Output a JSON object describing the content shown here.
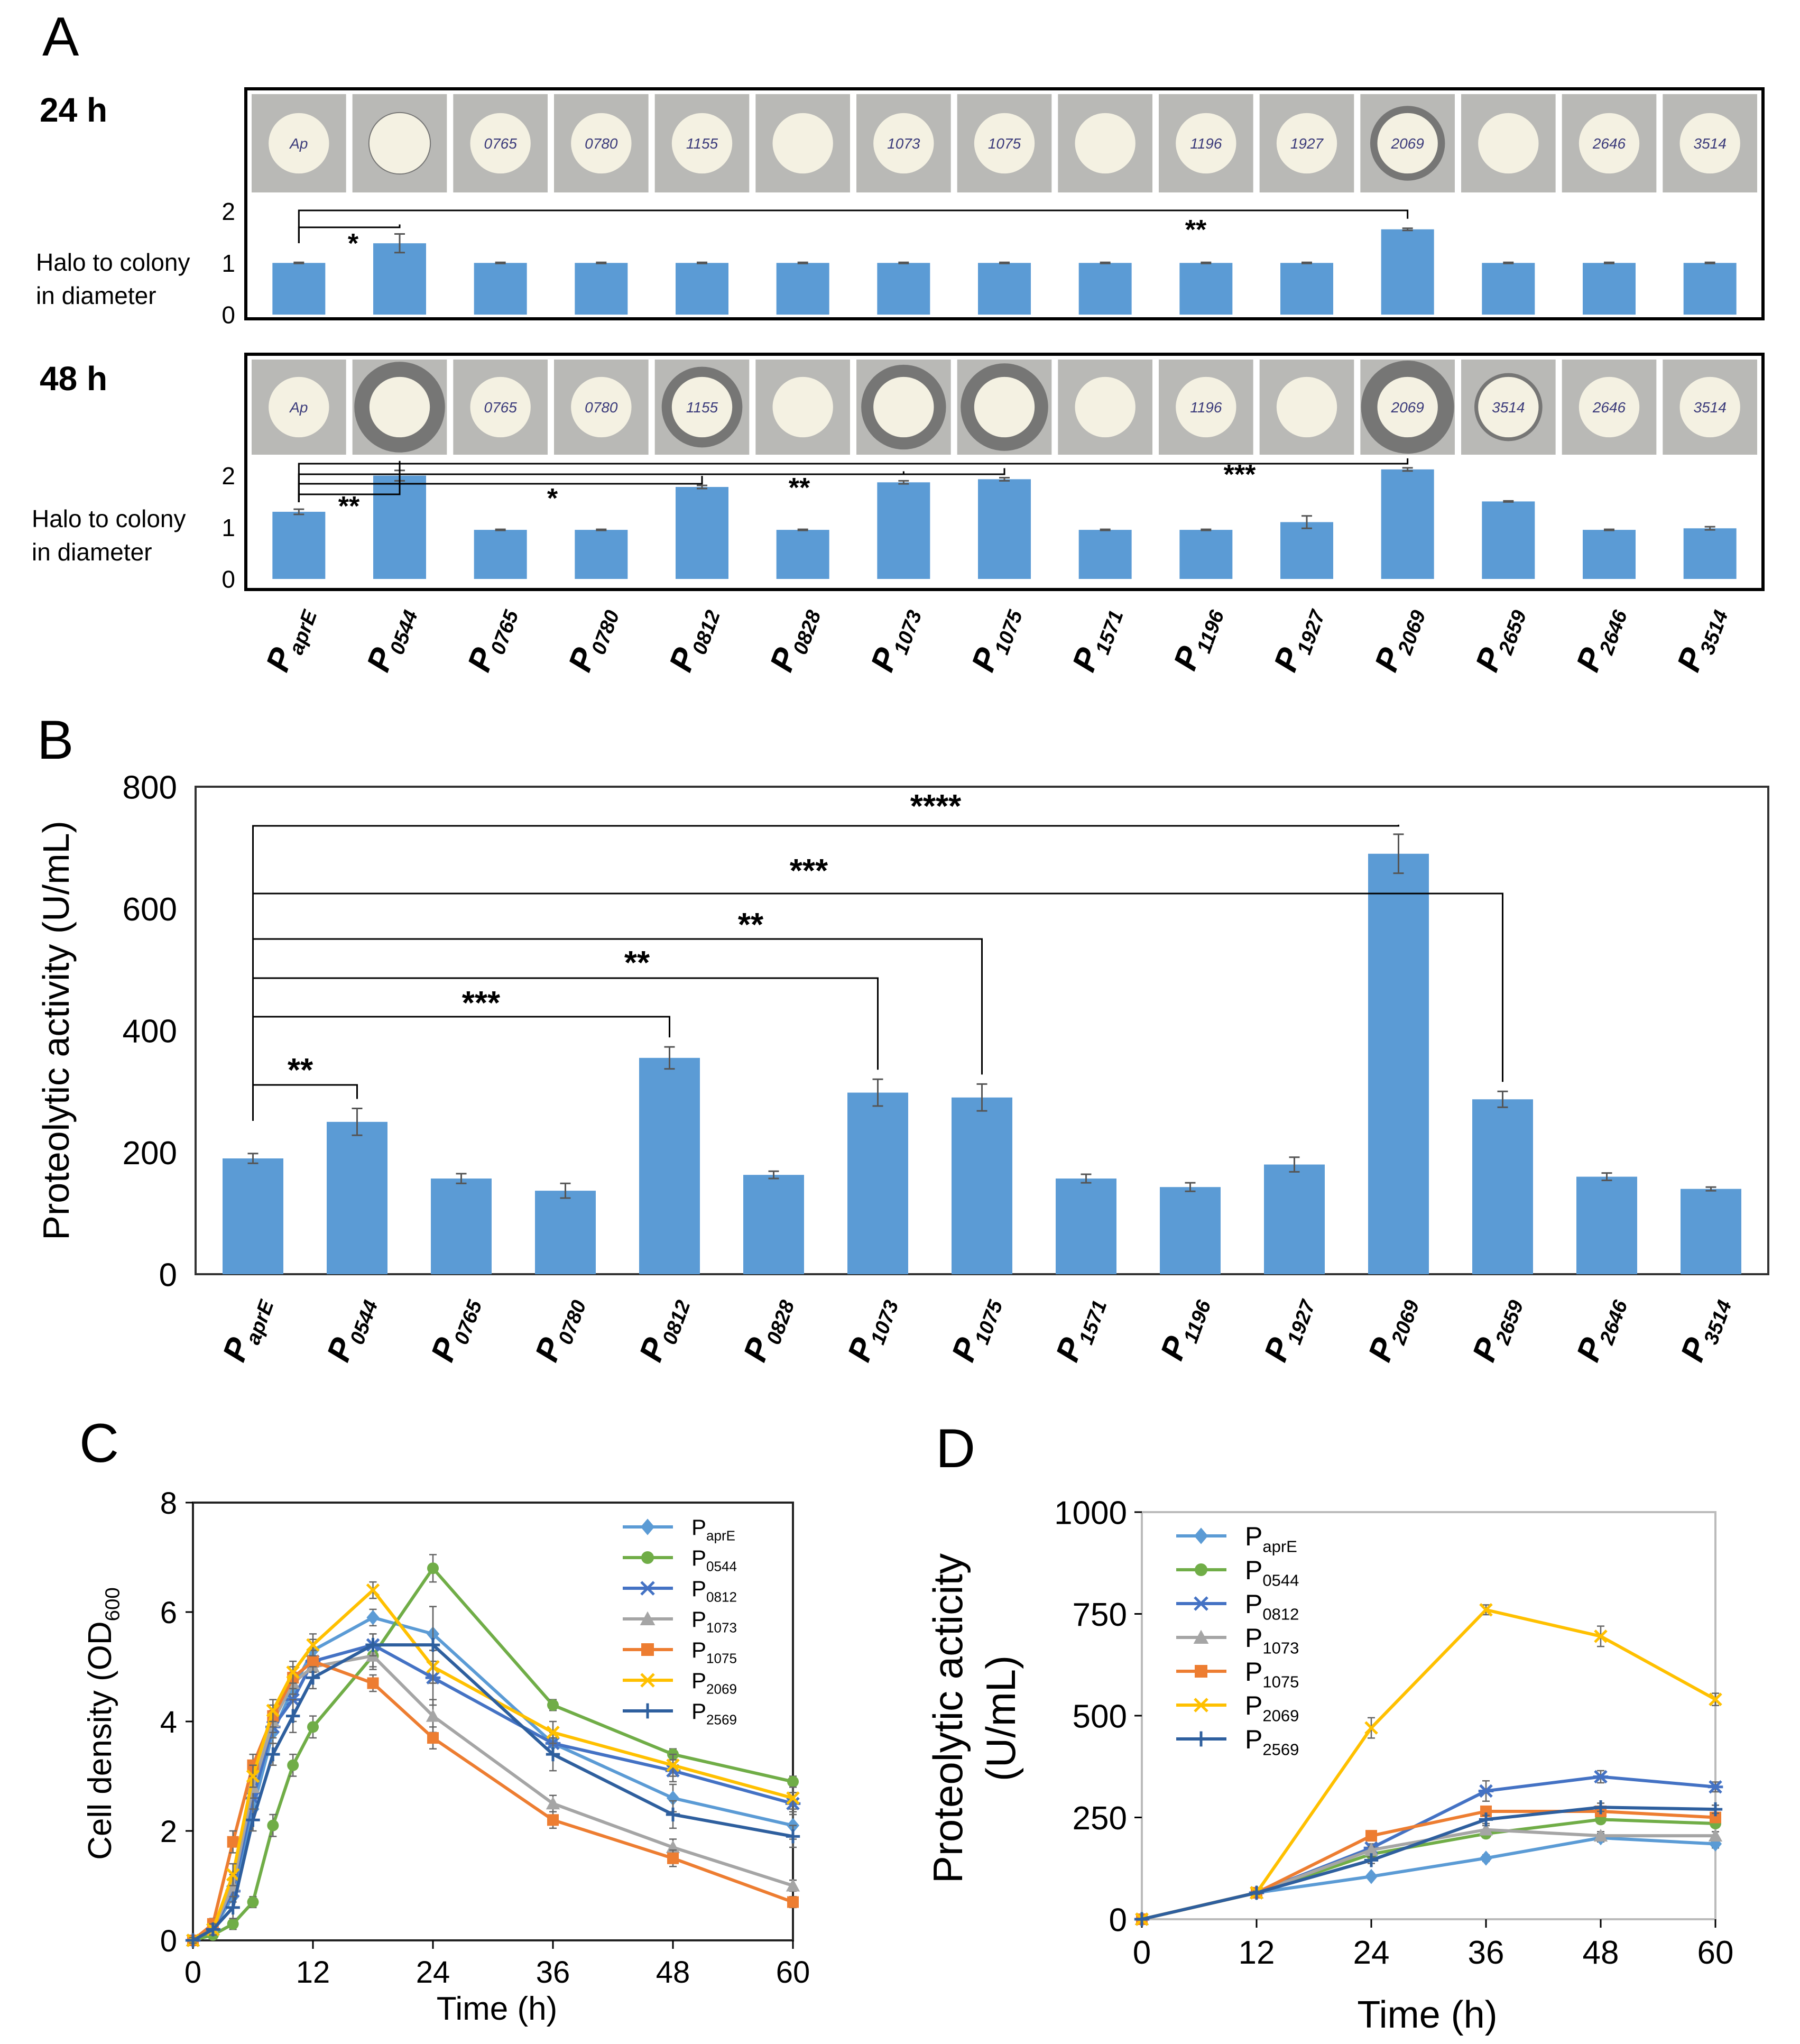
{
  "panel_letters": {
    "a": "A",
    "b": "B",
    "c": "C",
    "d": "D"
  },
  "promoters": [
    {
      "base": "P",
      "sub": "aprE"
    },
    {
      "base": "P",
      "sub": "0544"
    },
    {
      "base": "P",
      "sub": "0765"
    },
    {
      "base": "P",
      "sub": "0780"
    },
    {
      "base": "P",
      "sub": "0812"
    },
    {
      "base": "P",
      "sub": "0828"
    },
    {
      "base": "P",
      "sub": "1073"
    },
    {
      "base": "P",
      "sub": "1075"
    },
    {
      "base": "P",
      "sub": "1571"
    },
    {
      "base": "P",
      "sub": "1196"
    },
    {
      "base": "P",
      "sub": "1927"
    },
    {
      "base": "P",
      "sub": "2069"
    },
    {
      "base": "P",
      "sub": "2659"
    },
    {
      "base": "P",
      "sub": "2646"
    },
    {
      "base": "P",
      "sub": "3514"
    }
  ],
  "plate_labels_24h": [
    "Ap",
    "",
    "0765",
    "0780",
    "1155",
    "",
    "1073",
    "1075",
    "",
    "1196",
    "1927",
    "2069",
    "",
    "2646",
    "3514"
  ],
  "plate_labels_48h": [
    "Ap",
    "",
    "0765",
    "0780",
    "1155",
    "",
    "",
    "",
    "",
    "1196",
    "",
    "2069",
    "3514",
    "2646",
    "3514"
  ],
  "colors": {
    "bar": "#5b9bd5",
    "paprE": "#5b9bd5",
    "p0544": "#70ad47",
    "p0812": "#4472c4",
    "p1073": "#a5a5a5",
    "p1075": "#ed7d31",
    "p2069": "#ffc000",
    "p2569": "#2e5f9e"
  },
  "chart_data": [
    {
      "id": "A-24h",
      "type": "bar",
      "time_label": "24 h",
      "ylabel": "Halo to colony\nin diameter",
      "yticks": [
        0,
        1,
        2
      ],
      "ylim": [
        0,
        2.2
      ],
      "categories": [
        "PaprE",
        "P0544",
        "P0765",
        "P0780",
        "P0812",
        "P0828",
        "P1073",
        "P1075",
        "P1571",
        "P1196",
        "P1927",
        "P2069",
        "P2659",
        "P2646",
        "P3514"
      ],
      "values": [
        1.0,
        1.38,
        1.0,
        1.0,
        1.0,
        1.0,
        1.0,
        1.0,
        1.0,
        1.0,
        1.0,
        1.65,
        1.0,
        1.0,
        1.0
      ],
      "errors": [
        0.01,
        0.18,
        0.01,
        0.01,
        0.01,
        0.01,
        0.01,
        0.01,
        0.01,
        0.01,
        0.01,
        0.02,
        0.01,
        0.01,
        0.01
      ],
      "significance": [
        {
          "from": 0,
          "to": 1,
          "label": "*"
        },
        {
          "from": 0,
          "to": 11,
          "label": "**"
        }
      ]
    },
    {
      "id": "A-48h",
      "type": "bar",
      "time_label": "48 h",
      "ylabel": "Halo to colony\nin diameter",
      "yticks": [
        0,
        1,
        2
      ],
      "ylim": [
        0,
        2.2
      ],
      "categories": [
        "PaprE",
        "P0544",
        "P0765",
        "P0780",
        "P0812",
        "P0828",
        "P1073",
        "P1075",
        "P1571",
        "P1196",
        "P1927",
        "P2069",
        "P2659",
        "P2646",
        "P3514"
      ],
      "values": [
        1.3,
        2.0,
        0.95,
        0.95,
        1.78,
        0.95,
        1.87,
        1.93,
        0.95,
        0.95,
        1.1,
        2.12,
        1.5,
        0.95,
        0.98
      ],
      "errors": [
        0.05,
        0.1,
        0.01,
        0.01,
        0.03,
        0.01,
        0.03,
        0.03,
        0.01,
        0.01,
        0.12,
        0.03,
        0.01,
        0.01,
        0.03
      ],
      "significance": [
        {
          "from": 0,
          "to": 1,
          "label": "**"
        },
        {
          "from": 0,
          "to": 4,
          "label": "*"
        },
        {
          "from": 0,
          "to": 6,
          "label": "**"
        },
        {
          "from": 0,
          "to": 7,
          "label": ""
        },
        {
          "from": 0,
          "to": 11,
          "label": "***"
        }
      ]
    },
    {
      "id": "B",
      "type": "bar",
      "ylabel": "Proteolytic activity (U/mL)",
      "yticks": [
        0,
        200,
        400,
        600,
        800
      ],
      "ylim": [
        0,
        800
      ],
      "categories": [
        "PaprE",
        "P0544",
        "P0765",
        "P0780",
        "P0812",
        "P0828",
        "P1073",
        "P1075",
        "P1571",
        "P1196",
        "P1927",
        "P2069",
        "P2659",
        "P2646",
        "P3514"
      ],
      "values": [
        190,
        250,
        157,
        137,
        355,
        163,
        298,
        290,
        157,
        143,
        180,
        690,
        287,
        160,
        140
      ],
      "errors": [
        8,
        22,
        8,
        12,
        18,
        6,
        22,
        22,
        7,
        7,
        12,
        32,
        13,
        6,
        3
      ],
      "significance": [
        {
          "from": 0,
          "to": 1,
          "label": "**"
        },
        {
          "from": 0,
          "to": 4,
          "label": "***"
        },
        {
          "from": 0,
          "to": 6,
          "label": "**"
        },
        {
          "from": 0,
          "to": 7,
          "label": "**"
        },
        {
          "from": 0,
          "to": 12,
          "label": "***"
        },
        {
          "from": 0,
          "to": 11,
          "label": "****"
        }
      ]
    },
    {
      "id": "C",
      "type": "line",
      "xlabel": "Time (h)",
      "ylabel_base": "Cell density (OD",
      "ylabel_sub": "600",
      "ylabel_end": ")",
      "xticks": [
        0,
        12,
        24,
        36,
        48,
        60
      ],
      "yticks": [
        0,
        2,
        4,
        6,
        8
      ],
      "xlim": [
        0,
        60
      ],
      "ylim": [
        0,
        8
      ],
      "legend_position": "top-right",
      "series": [
        {
          "name_base": "P",
          "name_sub": "aprE",
          "marker": "diamond",
          "color": "#5b9bd5",
          "x": [
            0,
            2,
            4,
            6,
            8,
            10,
            12,
            18,
            24,
            36,
            48,
            60
          ],
          "y": [
            0,
            0.2,
            0.8,
            2.4,
            3.8,
            4.6,
            5.3,
            5.9,
            5.6,
            3.6,
            2.6,
            2.1
          ],
          "err": [
            0.05,
            0.1,
            0.2,
            0.2,
            0.2,
            0.2,
            0.2,
            0.15,
            0.5,
            0.2,
            0.25,
            0.25
          ]
        },
        {
          "name_base": "P",
          "name_sub": "0544",
          "marker": "circle",
          "color": "#70ad47",
          "x": [
            0,
            2,
            4,
            6,
            8,
            10,
            12,
            18,
            24,
            36,
            48,
            60
          ],
          "y": [
            0,
            0.1,
            0.3,
            0.7,
            2.1,
            3.2,
            3.9,
            5.2,
            6.8,
            4.3,
            3.4,
            2.9
          ],
          "err": [
            0.05,
            0.05,
            0.1,
            0.1,
            0.2,
            0.2,
            0.2,
            0.25,
            0.25,
            0.1,
            0.1,
            0.1
          ]
        },
        {
          "name_base": "P",
          "name_sub": "0812",
          "marker": "star",
          "color": "#4472c4",
          "x": [
            0,
            2,
            4,
            6,
            8,
            10,
            12,
            18,
            24,
            36,
            48,
            60
          ],
          "y": [
            0,
            0.2,
            0.9,
            2.6,
            3.9,
            4.4,
            5.1,
            5.4,
            4.8,
            3.6,
            3.1,
            2.5
          ],
          "err": [
            0.05,
            0.1,
            0.2,
            0.2,
            0.2,
            0.4,
            0.2,
            0.2,
            0.5,
            0.2,
            0.2,
            0.2
          ]
        },
        {
          "name_base": "P",
          "name_sub": "1073",
          "marker": "triangle",
          "color": "#a5a5a5",
          "x": [
            0,
            2,
            4,
            6,
            8,
            10,
            12,
            18,
            24,
            36,
            48,
            60
          ],
          "y": [
            0,
            0.2,
            1.0,
            2.8,
            4.0,
            4.7,
            5.0,
            5.2,
            4.1,
            2.5,
            1.7,
            1.0
          ],
          "err": [
            0.05,
            0.1,
            0.2,
            0.2,
            0.2,
            0.2,
            0.2,
            0.2,
            0.3,
            0.15,
            0.15,
            0.1
          ]
        },
        {
          "name_base": "P",
          "name_sub": "1075",
          "marker": "square",
          "color": "#ed7d31",
          "x": [
            0,
            2,
            4,
            6,
            8,
            10,
            12,
            18,
            24,
            36,
            48,
            60
          ],
          "y": [
            0,
            0.3,
            1.8,
            3.2,
            4.1,
            4.8,
            5.1,
            4.7,
            3.7,
            2.2,
            1.5,
            0.7
          ],
          "err": [
            0.05,
            0.1,
            0.2,
            0.2,
            0.2,
            0.2,
            0.2,
            0.15,
            0.2,
            0.15,
            0.15,
            0.1
          ]
        },
        {
          "name_base": "P",
          "name_sub": "2069",
          "marker": "x",
          "color": "#ffc000",
          "x": [
            0,
            2,
            4,
            6,
            8,
            10,
            12,
            18,
            24,
            36,
            48,
            60
          ],
          "y": [
            0,
            0.2,
            1.2,
            3.0,
            4.2,
            4.9,
            5.4,
            6.4,
            5.0,
            3.8,
            3.2,
            2.6
          ],
          "err": [
            0.05,
            0.1,
            0.2,
            0.2,
            0.2,
            0.2,
            0.2,
            0.15,
            0.3,
            0.2,
            0.2,
            0.2
          ]
        },
        {
          "name_base": "P",
          "name_sub": "2569",
          "marker": "plus",
          "color": "#2e5f9e",
          "x": [
            0,
            2,
            4,
            6,
            8,
            10,
            12,
            18,
            24,
            36,
            48,
            60
          ],
          "y": [
            0,
            0.2,
            0.6,
            2.2,
            3.4,
            4.1,
            4.8,
            5.4,
            5.4,
            3.4,
            2.3,
            1.9
          ],
          "err": [
            0.05,
            0.1,
            0.2,
            0.2,
            0.2,
            0.3,
            0.2,
            0.2,
            0.7,
            0.3,
            0.25,
            0.2
          ]
        }
      ]
    },
    {
      "id": "D",
      "type": "line",
      "xlabel": "Time (h)",
      "ylabel_line1": "Proteolytic  acticity",
      "ylabel_line2": "(U/mL)",
      "xticks": [
        0,
        12,
        24,
        36,
        48,
        60
      ],
      "yticks": [
        0,
        250,
        500,
        750,
        1000
      ],
      "xlim": [
        0,
        60
      ],
      "ylim": [
        0,
        1000
      ],
      "legend_position": "top-left",
      "series": [
        {
          "name_base": "P",
          "name_sub": "aprE",
          "marker": "diamond",
          "color": "#5b9bd5",
          "x": [
            0,
            12,
            24,
            36,
            48,
            60
          ],
          "y": [
            0,
            65,
            105,
            150,
            200,
            185
          ],
          "err": [
            2,
            4,
            6,
            8,
            10,
            10
          ]
        },
        {
          "name_base": "P",
          "name_sub": "0544",
          "marker": "circle",
          "color": "#70ad47",
          "x": [
            0,
            12,
            24,
            36,
            48,
            60
          ],
          "y": [
            0,
            65,
            160,
            210,
            245,
            235
          ],
          "err": [
            2,
            4,
            8,
            10,
            10,
            10
          ]
        },
        {
          "name_base": "P",
          "name_sub": "0812",
          "marker": "star",
          "color": "#4472c4",
          "x": [
            0,
            12,
            24,
            36,
            48,
            60
          ],
          "y": [
            0,
            65,
            175,
            315,
            350,
            325
          ],
          "err": [
            2,
            4,
            10,
            25,
            15,
            12
          ]
        },
        {
          "name_base": "P",
          "name_sub": "1073",
          "marker": "triangle",
          "color": "#a5a5a5",
          "x": [
            0,
            12,
            24,
            36,
            48,
            60
          ],
          "y": [
            0,
            65,
            170,
            220,
            205,
            205
          ],
          "err": [
            2,
            4,
            8,
            10,
            10,
            10
          ]
        },
        {
          "name_base": "P",
          "name_sub": "1075",
          "marker": "square",
          "color": "#ed7d31",
          "x": [
            0,
            12,
            24,
            36,
            48,
            60
          ],
          "y": [
            0,
            65,
            205,
            265,
            265,
            250
          ],
          "err": [
            2,
            4,
            10,
            10,
            10,
            10
          ]
        },
        {
          "name_base": "P",
          "name_sub": "2069",
          "marker": "x",
          "color": "#ffc000",
          "x": [
            0,
            12,
            24,
            36,
            48,
            60
          ],
          "y": [
            0,
            65,
            470,
            760,
            695,
            540
          ],
          "err": [
            2,
            4,
            25,
            12,
            25,
            15
          ]
        },
        {
          "name_base": "P",
          "name_sub": "2569",
          "marker": "plus",
          "color": "#2e5f9e",
          "x": [
            0,
            12,
            24,
            36,
            48,
            60
          ],
          "y": [
            0,
            65,
            145,
            245,
            275,
            270
          ],
          "err": [
            2,
            4,
            8,
            10,
            10,
            10
          ]
        }
      ]
    }
  ]
}
